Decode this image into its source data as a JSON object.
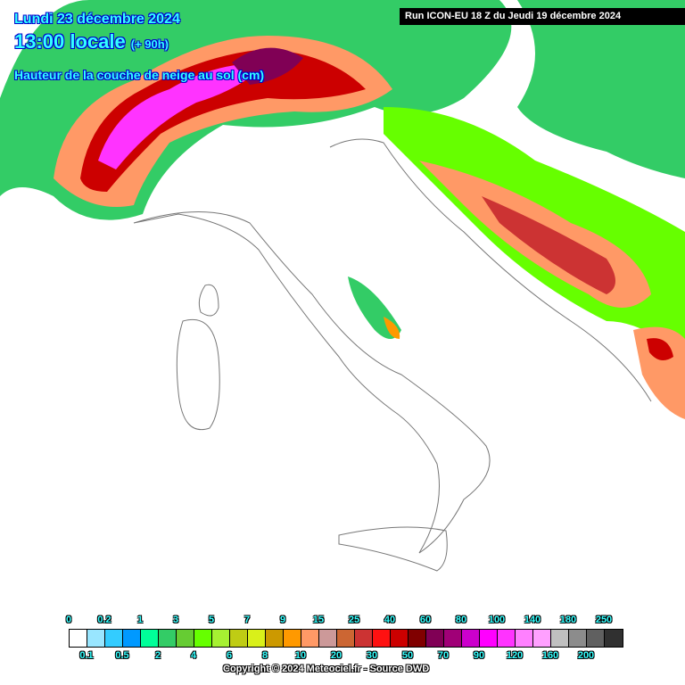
{
  "header": {
    "date": "Lundi 23 décembre 2024",
    "time": "13:00 locale",
    "lead": "(+ 90h)",
    "variable": "Hauteur de la couche de neige au sol (cm)",
    "run": "Run ICON-EU 18 Z du Jeudi 19 décembre 2024"
  },
  "legend": {
    "unit": "cm",
    "labels": [
      "0",
      "0.1",
      "0.2",
      "0.5",
      "1",
      "2",
      "3",
      "4",
      "5",
      "6",
      "7",
      "8",
      "9",
      "10",
      "15",
      "20",
      "25",
      "30",
      "40",
      "50",
      "60",
      "70",
      "80",
      "90",
      "100",
      "120",
      "140",
      "160",
      "180",
      "200",
      "250"
    ],
    "colors": [
      "#ffffff",
      "#99e6ff",
      "#33ccff",
      "#0099ff",
      "#00ff99",
      "#33cc66",
      "#66cc33",
      "#66ff00",
      "#a6f032",
      "#bfcc14",
      "#d9f01a",
      "#cc9900",
      "#ff9900",
      "#ff9966",
      "#cc9999",
      "#cc6633",
      "#cc3333",
      "#ff1111",
      "#cc0000",
      "#800000",
      "#800055",
      "#a00077",
      "#cc00cc",
      "#ff00ff",
      "#ff33ff",
      "#ff80ff",
      "#ffa0ff",
      "#c0c0c0",
      "#8c8c8c",
      "#606060",
      "#303030"
    ]
  },
  "copyright": "Copyright © 2024 Meteociel.fr - Source DWD"
}
